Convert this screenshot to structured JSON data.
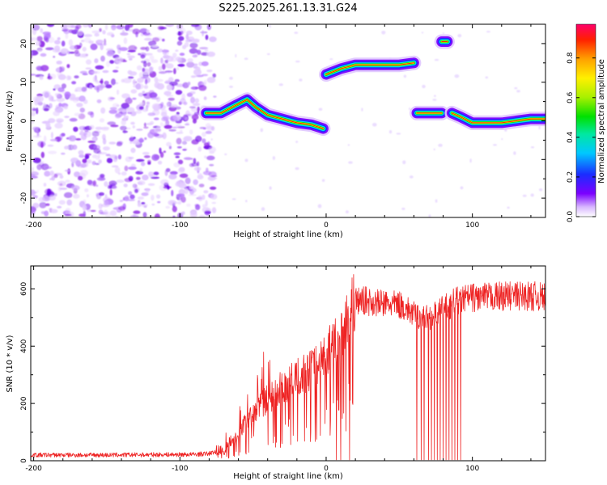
{
  "title": "S225.2025.261.13.31.G24",
  "colors": {
    "snr_line": "#ee2222",
    "ridge_cool": "#7b00ff",
    "ridge_mid": "#00ddee",
    "ridge_hot": "#ff2200",
    "noise": "#8a1ee6"
  },
  "chart_data": [
    {
      "type": "heatmap",
      "name": "spectrogram",
      "xlabel": "Height of straight line (km)",
      "ylabel": "Frequency (Hz)",
      "xlim": [
        -202,
        150
      ],
      "ylim": [
        -25,
        25
      ],
      "xticks": [
        -200,
        -100,
        0,
        100
      ],
      "xtick_labels": [
        "-200",
        "-100",
        "0",
        "100"
      ],
      "yticks": [
        -20,
        -10,
        0,
        10,
        20
      ],
      "ytick_labels": [
        "-20",
        "-10",
        "0",
        "10",
        "20"
      ],
      "noise_region": {
        "x_from": -202,
        "x_to": -80,
        "y_from": -25,
        "y_to": 25
      },
      "ridges": [
        {
          "label": "low-frequency ridge",
          "points": [
            [
              -82,
              2
            ],
            [
              -72,
              2
            ],
            [
              -62,
              4
            ],
            [
              -54,
              5.5
            ],
            [
              -48,
              3.5
            ],
            [
              -40,
              1.5
            ],
            [
              -30,
              0.5
            ],
            [
              -20,
              -0.5
            ],
            [
              -10,
              -1
            ],
            [
              -2,
              -2
            ]
          ]
        },
        {
          "label": "upper ridge",
          "points": [
            [
              0,
              12
            ],
            [
              10,
              13.5
            ],
            [
              20,
              14.5
            ],
            [
              30,
              14.5
            ],
            [
              40,
              14.5
            ],
            [
              50,
              14.5
            ],
            [
              60,
              15
            ]
          ]
        },
        {
          "label": "segment near 70 km",
          "points": [
            [
              62,
              2
            ],
            [
              72,
              2
            ],
            [
              79,
              2
            ]
          ]
        },
        {
          "label": "spot near 82 km",
          "points": [
            [
              79,
              20.5
            ],
            [
              83,
              20.5
            ]
          ]
        },
        {
          "label": "right ridge",
          "points": [
            [
              86,
              2
            ],
            [
              92,
              1
            ],
            [
              100,
              -0.5
            ],
            [
              110,
              -0.5
            ],
            [
              120,
              -0.5
            ],
            [
              130,
              0
            ],
            [
              140,
              0.5
            ],
            [
              150,
              0.5
            ]
          ]
        }
      ],
      "colorbar": {
        "label": "Normalized spectral amplitude",
        "range": [
          0.0,
          0.97
        ],
        "ticks": [
          0.0,
          0.2,
          0.4,
          0.6,
          0.8
        ],
        "tick_labels": [
          "0.0",
          "0.2",
          "0.4",
          "0.6",
          "0.8"
        ]
      }
    },
    {
      "type": "line",
      "name": "snr",
      "xlabel": "Height of straight line (km)",
      "ylabel": "SNR (10 * v/v)",
      "xlim": [
        -202,
        150
      ],
      "ylim": [
        0,
        680
      ],
      "xticks": [
        -200,
        -100,
        0,
        100
      ],
      "xtick_labels": [
        "-200",
        "-100",
        "0",
        "100"
      ],
      "yticks": [
        0,
        200,
        400,
        600
      ],
      "ytick_labels": [
        "0",
        "200",
        "400",
        "600"
      ],
      "series": [
        {
          "name": "SNR",
          "x": [
            -202,
            -180,
            -150,
            -120,
            -90,
            -80,
            -70,
            -65,
            -60,
            -55,
            -50,
            -45,
            -40,
            -35,
            -30,
            -25,
            -20,
            -15,
            -10,
            -5,
            0,
            5,
            10,
            15,
            20,
            25,
            30,
            35,
            40,
            45,
            50,
            55,
            60,
            65,
            70,
            75,
            80,
            85,
            90,
            95,
            100,
            110,
            120,
            130,
            140,
            150
          ],
          "y": [
            20,
            20,
            20,
            21,
            22,
            25,
            40,
            70,
            100,
            130,
            160,
            190,
            215,
            235,
            255,
            270,
            290,
            305,
            320,
            345,
            375,
            410,
            455,
            500,
            555,
            560,
            555,
            550,
            548,
            545,
            545,
            530,
            510,
            500,
            500,
            510,
            530,
            545,
            560,
            565,
            570,
            570,
            575,
            575,
            575,
            570
          ],
          "dropouts": [
            7,
            10,
            16,
            62,
            65,
            67,
            70,
            72,
            74,
            76,
            78,
            80,
            82,
            84,
            86,
            88,
            90,
            92
          ]
        }
      ]
    }
  ]
}
